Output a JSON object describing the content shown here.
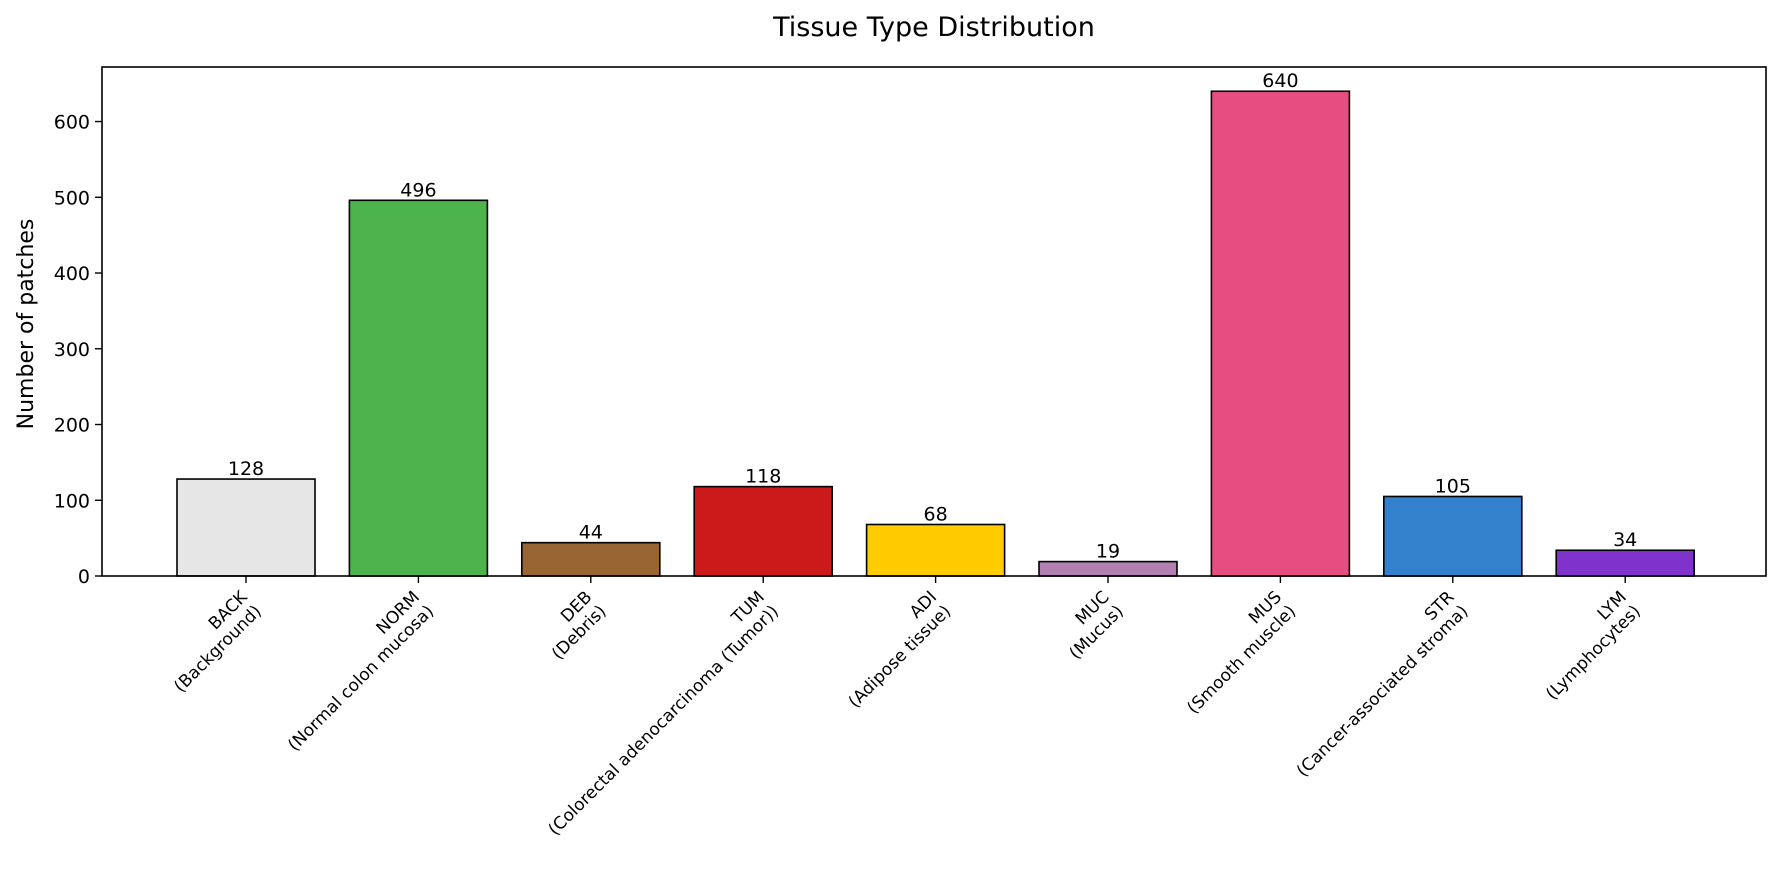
{
  "chart_data": {
    "type": "bar",
    "title": "Tissue Type Distribution",
    "xlabel": "",
    "ylabel": "Number of patches",
    "ylim": [
      0,
      672
    ],
    "yticks": [
      0,
      100,
      200,
      300,
      400,
      500,
      600
    ],
    "grid": false,
    "legend": "none",
    "categories": [
      {
        "code": "BACK",
        "desc": "(Background)"
      },
      {
        "code": "NORM",
        "desc": "(Normal colon mucosa)"
      },
      {
        "code": "DEB",
        "desc": "(Debris)"
      },
      {
        "code": "TUM",
        "desc": "(Colorectal adenocarcinoma (Tumor))"
      },
      {
        "code": "ADI",
        "desc": "(Adipose tissue)"
      },
      {
        "code": "MUC",
        "desc": "(Mucus)"
      },
      {
        "code": "MUS",
        "desc": "(Smooth muscle)"
      },
      {
        "code": "STR",
        "desc": "(Cancer-associated stroma)"
      },
      {
        "code": "LYM",
        "desc": "(Lymphocytes)"
      }
    ],
    "values": [
      128,
      496,
      44,
      118,
      68,
      19,
      640,
      105,
      34
    ],
    "colors": [
      "#e6e6e6",
      "#4db34d",
      "#996633",
      "#cc1a1a",
      "#ffcc00",
      "#b380b3",
      "#e64d80",
      "#3380cc",
      "#8033cc"
    ]
  }
}
